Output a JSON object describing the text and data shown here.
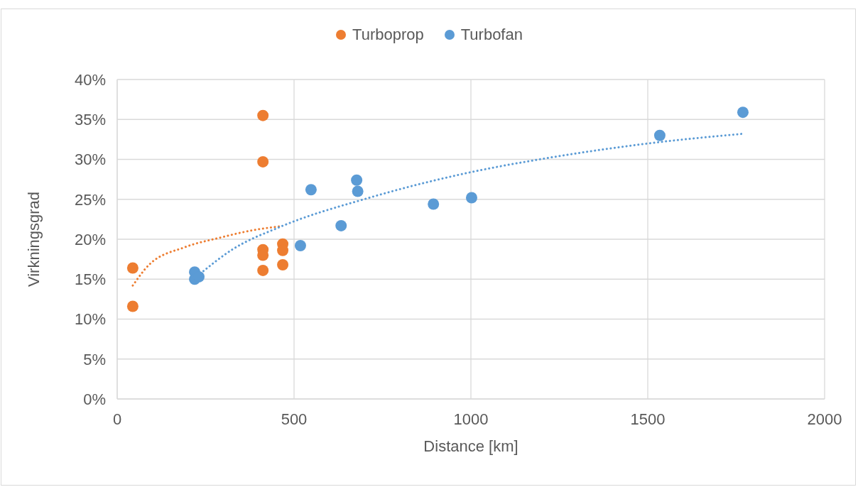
{
  "chart_data": {
    "type": "scatter",
    "xlabel": "Distance [km]",
    "ylabel": "Virkningsgrad",
    "xlim": [
      0,
      2000
    ],
    "xticks": [
      0,
      500,
      1000,
      1500,
      2000
    ],
    "ylim": [
      0,
      40
    ],
    "yticks": [
      {
        "value": 0,
        "label": "0%"
      },
      {
        "value": 5,
        "label": "5%"
      },
      {
        "value": 10,
        "label": "10%"
      },
      {
        "value": 15,
        "label": "15%"
      },
      {
        "value": 20,
        "label": "20%"
      },
      {
        "value": 25,
        "label": "25%"
      },
      {
        "value": 30,
        "label": "30%"
      },
      {
        "value": 35,
        "label": "35%"
      },
      {
        "value": 40,
        "label": "40%"
      }
    ],
    "grid": true,
    "legend": "top",
    "marker": "circle",
    "series": [
      {
        "name": "Turboprop",
        "color": "#ed7d31",
        "x": [
          44,
          44,
          412,
          412,
          412,
          412,
          412,
          468,
          468,
          468
        ],
        "values": [
          16.4,
          11.6,
          35.5,
          29.7,
          18.7,
          18.0,
          16.1,
          19.4,
          18.6,
          16.8
        ]
      },
      {
        "name": "Turbofan",
        "color": "#5b9bd5",
        "x": [
          219,
          219,
          231,
          518,
          548,
          633,
          677,
          680,
          894,
          1002,
          1534,
          1769
        ],
        "values": [
          15.9,
          15.0,
          15.3,
          19.2,
          26.2,
          21.7,
          27.4,
          26.0,
          24.4,
          25.2,
          33.0,
          35.9
        ]
      },
      {
        "type": "line",
        "color": "#ed7d31",
        "line_style": "dotted",
        "marker": "none",
        "x": [
          44,
          90,
          191,
          291,
          392,
          458
        ],
        "values": [
          14.2,
          16.8,
          19.0,
          20.2,
          21.2,
          21.6
        ]
      },
      {
        "type": "line",
        "color": "#5b9bd5",
        "line_style": "dotted",
        "marker": "none",
        "x": [
          235,
          325,
          458,
          713,
          1000,
          1207,
          1502,
          1767
        ],
        "values": [
          15.7,
          18.7,
          21.5,
          25.2,
          28.4,
          30.1,
          32.0,
          33.2
        ]
      }
    ]
  }
}
